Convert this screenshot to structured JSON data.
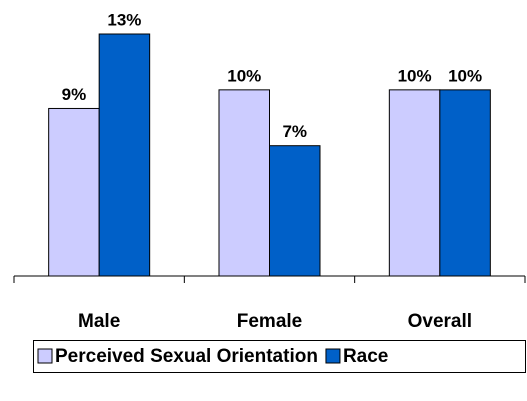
{
  "chart_data": {
    "type": "bar",
    "categories": [
      "Male",
      "Female",
      "Overall"
    ],
    "series": [
      {
        "name": "Perceived Sexual Orientation",
        "color": "#ccccff",
        "values": [
          9,
          10,
          10
        ],
        "value_labels": [
          "9%",
          "10%",
          "10%"
        ]
      },
      {
        "name": "Race",
        "color": "#0060c8",
        "values": [
          13,
          7,
          10
        ],
        "value_labels": [
          "13%",
          "7%",
          "10%"
        ]
      }
    ],
    "legend": "bottom"
  }
}
